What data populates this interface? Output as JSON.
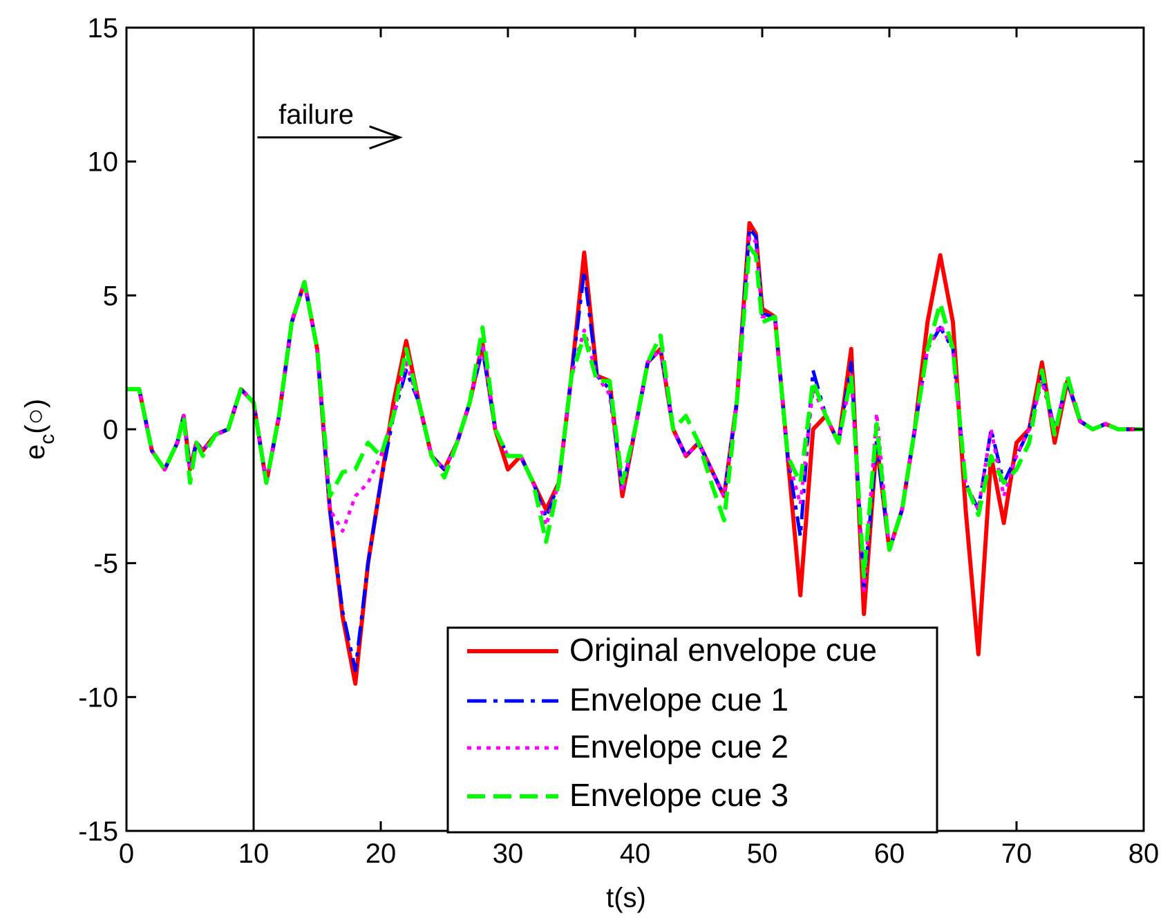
{
  "chart_data": {
    "type": "line",
    "title": "",
    "xlabel": "t(s)",
    "ylabel_main": "e",
    "ylabel_sub": "c",
    "ylabel_unit": "(○)",
    "xlim": [
      0,
      80
    ],
    "ylim": [
      -15,
      15
    ],
    "xticks": [
      0,
      10,
      20,
      30,
      40,
      50,
      60,
      70,
      80
    ],
    "yticks": [
      -15,
      -10,
      -5,
      0,
      5,
      10,
      15
    ],
    "grid": false,
    "legend_position": "bottom-center",
    "annotation": {
      "text": "failure",
      "failure_time": 10,
      "arrow_from_t": 10.3,
      "arrow_to_t": 21.5,
      "arrow_y": 10.9
    },
    "series": [
      {
        "name": "Original envelope cue",
        "color": "#ff0000",
        "style": "solid",
        "x": [
          0,
          1,
          2,
          3,
          4,
          4.5,
          5,
          5.5,
          6,
          7,
          8,
          9,
          10,
          11,
          12,
          13,
          14,
          15,
          16,
          17,
          18,
          19,
          20,
          21,
          22,
          23,
          24,
          25,
          26,
          27,
          28,
          29,
          30,
          31,
          32,
          33,
          34,
          35,
          36,
          37,
          38,
          39,
          40,
          41,
          42,
          43,
          44,
          45,
          46,
          47,
          48,
          49,
          49.5,
          50,
          51,
          52,
          53,
          54,
          55,
          56,
          57,
          58,
          59,
          60,
          61,
          62,
          63,
          64,
          65,
          66,
          67,
          68,
          69,
          70,
          71,
          72,
          73,
          74,
          75,
          76,
          77,
          78,
          79,
          80
        ],
        "y": [
          1.5,
          1.5,
          -0.8,
          -1.5,
          -0.5,
          0.5,
          -1.5,
          -0.5,
          -0.8,
          -0.2,
          0,
          1.5,
          1,
          -2,
          0.5,
          4,
          5.5,
          3,
          -3,
          -7,
          -9.5,
          -5,
          -2,
          1,
          3.3,
          1,
          -1,
          -1.5,
          -0.5,
          1,
          3.2,
          0,
          -1.5,
          -1,
          -2,
          -3,
          -2,
          2,
          6.6,
          2,
          1.8,
          -2.5,
          0,
          2.5,
          3,
          0,
          -1,
          -0.5,
          -1.5,
          -2.5,
          1,
          7.7,
          7.3,
          4.5,
          4.2,
          -1,
          -6.2,
          0,
          0.5,
          -0.5,
          3,
          -6.9,
          -0.5,
          -4.5,
          -3,
          0,
          4,
          6.5,
          4,
          -3,
          -8.4,
          -1,
          -3.5,
          -0.5,
          0,
          2.5,
          -0.5,
          1.8,
          0.3,
          0,
          0.2,
          0,
          0,
          0
        ]
      },
      {
        "name": "Envelope cue 1",
        "color": "#0000ff",
        "style": "dashdot",
        "x": [
          0,
          1,
          2,
          3,
          4,
          4.5,
          5,
          5.5,
          6,
          7,
          8,
          9,
          10,
          11,
          12,
          13,
          14,
          15,
          16,
          17,
          18,
          19,
          20,
          21,
          22,
          23,
          24,
          25,
          26,
          27,
          28,
          29,
          30,
          31,
          32,
          33,
          34,
          35,
          36,
          37,
          38,
          39,
          40,
          41,
          42,
          43,
          44,
          45,
          46,
          47,
          48,
          49,
          49.5,
          50,
          51,
          52,
          53,
          54,
          55,
          56,
          57,
          58,
          59,
          60,
          61,
          62,
          63,
          64,
          65,
          66,
          67,
          68,
          69,
          70,
          71,
          72,
          73,
          74,
          75,
          76,
          77,
          78,
          79,
          80
        ],
        "y": [
          1.5,
          1.5,
          -0.8,
          -1.5,
          -0.5,
          0.5,
          -1.5,
          -0.5,
          -0.8,
          -0.2,
          0,
          1.5,
          1,
          -2,
          0.5,
          4,
          5.5,
          3,
          -3,
          -6.8,
          -9,
          -5,
          -2,
          0.5,
          2.2,
          1,
          -1,
          -1.5,
          -0.5,
          1,
          3,
          0,
          -1,
          -1,
          -2,
          -3.3,
          -2,
          2,
          5.9,
          2,
          1.5,
          -2.3,
          0,
          2.5,
          3,
          0,
          -1,
          -0.5,
          -1.5,
          -2.5,
          1,
          7.5,
          7.2,
          4.3,
          4.2,
          -1,
          -4,
          2.2,
          0.5,
          -0.5,
          2.5,
          -6,
          -0.5,
          -4.5,
          -3,
          0,
          3,
          3.8,
          3,
          -2,
          -3,
          0,
          -2,
          -1,
          0,
          2,
          0,
          1.8,
          0.3,
          0,
          0.2,
          0,
          0,
          0
        ]
      },
      {
        "name": "Envelope cue 2",
        "color": "#ff00ff",
        "style": "dotted",
        "x": [
          0,
          1,
          2,
          3,
          4,
          4.5,
          5,
          5.5,
          6,
          7,
          8,
          9,
          10,
          11,
          12,
          13,
          14,
          15,
          16,
          17,
          18,
          19,
          20,
          21,
          22,
          23,
          24,
          25,
          26,
          27,
          28,
          29,
          30,
          31,
          32,
          33,
          34,
          35,
          36,
          37,
          38,
          39,
          40,
          41,
          42,
          43,
          44,
          45,
          46,
          47,
          48,
          49,
          49.5,
          50,
          51,
          52,
          53,
          54,
          55,
          56,
          57,
          58,
          59,
          60,
          61,
          62,
          63,
          64,
          65,
          66,
          67,
          68,
          69,
          70,
          71,
          72,
          73,
          74,
          75,
          76,
          77,
          78,
          79,
          80
        ],
        "y": [
          1.5,
          1.5,
          -0.8,
          -1.5,
          -0.5,
          0.5,
          -1.5,
          -0.5,
          -0.8,
          -0.2,
          0,
          1.5,
          1,
          -2,
          0.5,
          4,
          5.5,
          3,
          -3,
          -3.8,
          -2.5,
          -2,
          -1,
          0.5,
          2.5,
          1,
          -1,
          -1.5,
          -0.5,
          1,
          3.2,
          0,
          -1,
          -1,
          -2,
          -3.6,
          -2,
          2,
          3.7,
          2,
          1.3,
          -2.3,
          0,
          2.5,
          3,
          0,
          -1,
          -0.5,
          -1.5,
          -2.5,
          1,
          7.2,
          7,
          4.2,
          4.2,
          -1,
          -2.8,
          1.5,
          0.5,
          -0.5,
          2,
          -6,
          0.6,
          -4.5,
          -3,
          0,
          3,
          3.9,
          3,
          -2,
          -3,
          0,
          -2.5,
          -1,
          0,
          1.8,
          0,
          1.8,
          0.3,
          0,
          0.2,
          0,
          0,
          0
        ]
      },
      {
        "name": "Envelope cue 3",
        "color": "#00ff00",
        "style": "dashed",
        "x": [
          0,
          1,
          2,
          3,
          4,
          4.5,
          5,
          5.5,
          6,
          7,
          8,
          9,
          10,
          11,
          12,
          13,
          14,
          15,
          16,
          17,
          18,
          19,
          20,
          21,
          22,
          23,
          24,
          25,
          26,
          27,
          28,
          29,
          30,
          31,
          32,
          33,
          34,
          35,
          36,
          37,
          38,
          39,
          40,
          41,
          42,
          43,
          44,
          45,
          46,
          47,
          48,
          49,
          49.5,
          50,
          51,
          52,
          53,
          54,
          55,
          56,
          57,
          58,
          59,
          60,
          61,
          62,
          63,
          64,
          65,
          66,
          67,
          68,
          69,
          70,
          71,
          72,
          73,
          74,
          75,
          76,
          77,
          78,
          79,
          80
        ],
        "y": [
          1.5,
          1.5,
          -0.8,
          -1.5,
          -0.5,
          0.5,
          -2,
          -0.5,
          -1,
          -0.2,
          0,
          1.5,
          1,
          -2,
          0.5,
          4,
          5.5,
          3,
          -2.5,
          -1.6,
          -1.5,
          -0.5,
          -1,
          0.5,
          3,
          1,
          -1,
          -1.8,
          -0.5,
          1,
          3.8,
          0,
          -1,
          -1,
          -2,
          -4.2,
          -2,
          2,
          3.5,
          1.8,
          1.8,
          -2,
          0,
          2.5,
          3.5,
          0,
          0.5,
          -0.5,
          -2,
          -3.4,
          1,
          6.8,
          6.5,
          4,
          4.2,
          -1,
          -2,
          1.8,
          0.5,
          -0.5,
          2,
          -5.5,
          0.2,
          -4.5,
          -3,
          0,
          3,
          4.7,
          3,
          -2,
          -3.2,
          -1,
          -2,
          -1.5,
          -0.5,
          2.2,
          -0.2,
          2,
          0.3,
          0,
          0.2,
          0,
          0,
          0
        ]
      }
    ]
  }
}
